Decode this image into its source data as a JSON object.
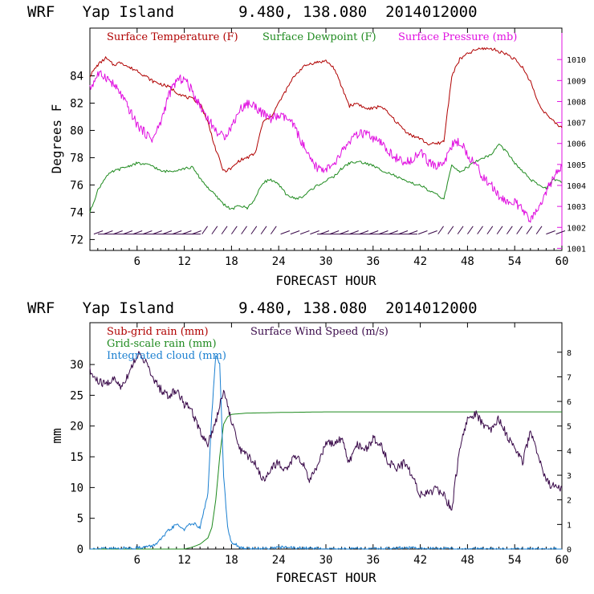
{
  "colors": {
    "temperature": "#b00000",
    "dewpoint": "#1e8a1e",
    "pressure": "#e010e0",
    "wind": "#3a0a4a",
    "subgrid_rain": "#b00000",
    "gridscale_rain": "#1e8a1e",
    "cloud": "#1a7fd0"
  },
  "chart_data": [
    {
      "type": "line",
      "title": "WRF   Yap Island       9.480, 138.080  2014012000",
      "xlabel": "FORECAST HOUR",
      "ylabel": "Degrees F",
      "xlim": [
        0,
        60
      ],
      "ylim": [
        71.2,
        87.5
      ],
      "y2lim": [
        1000.9,
        1011.5
      ],
      "xticks": [
        "6",
        "12",
        "18",
        "24",
        "30",
        "36",
        "42",
        "48",
        "54",
        "60"
      ],
      "yticks": [
        "72",
        "74",
        "76",
        "78",
        "80",
        "82",
        "84"
      ],
      "y2ticks": [
        "1001",
        "1002",
        "1003",
        "1004",
        "1005",
        "1006",
        "1007",
        "1008",
        "1009",
        "1010"
      ],
      "legend": [
        "Surface Temperature (F)",
        "Surface Dewpoint (F)",
        "Surface Pressure (mb)"
      ],
      "series": [
        {
          "name": "Surface Temperature (F)",
          "axis": "left",
          "x": [
            0,
            1,
            2,
            3,
            4,
            5,
            6,
            7,
            8,
            9,
            10,
            11,
            12,
            13,
            14,
            15,
            16,
            17,
            18,
            19,
            20,
            21,
            22,
            23,
            24,
            25,
            26,
            27,
            28,
            29,
            30,
            31,
            32,
            33,
            34,
            35,
            36,
            37,
            38,
            39,
            40,
            41,
            42,
            43,
            44,
            45,
            46,
            47,
            48,
            49,
            50,
            51,
            52,
            53,
            54,
            55,
            56,
            57,
            58,
            59,
            60
          ],
          "values": [
            84.0,
            84.8,
            85.3,
            84.8,
            85.0,
            84.6,
            84.4,
            84.0,
            83.6,
            83.4,
            83.2,
            82.8,
            82.5,
            82.3,
            82.0,
            80.6,
            78.6,
            77.0,
            77.2,
            77.8,
            78.0,
            78.3,
            80.6,
            81.0,
            82.0,
            83.0,
            84.0,
            84.6,
            84.9,
            85.0,
            85.1,
            84.6,
            83.2,
            81.8,
            82.0,
            81.6,
            81.6,
            81.8,
            81.2,
            80.6,
            80.0,
            79.6,
            79.4,
            79.0,
            79.0,
            79.2,
            84.0,
            85.2,
            85.6,
            85.9,
            86.0,
            86.0,
            85.8,
            85.6,
            85.2,
            84.6,
            83.6,
            82.0,
            81.2,
            80.6,
            80.2
          ]
        },
        {
          "name": "Surface Dewpoint (F)",
          "axis": "left",
          "x": [
            0,
            1,
            2,
            3,
            4,
            5,
            6,
            7,
            8,
            9,
            10,
            11,
            12,
            13,
            14,
            15,
            16,
            17,
            18,
            19,
            20,
            21,
            22,
            23,
            24,
            25,
            26,
            27,
            28,
            29,
            30,
            31,
            32,
            33,
            34,
            35,
            36,
            37,
            38,
            39,
            40,
            41,
            42,
            43,
            44,
            45,
            46,
            47,
            48,
            49,
            50,
            51,
            52,
            53,
            54,
            55,
            56,
            57,
            58,
            59,
            60
          ],
          "values": [
            74.0,
            75.6,
            76.6,
            77.0,
            77.2,
            77.4,
            77.6,
            77.5,
            77.4,
            77.0,
            77.0,
            77.1,
            77.2,
            77.3,
            76.5,
            75.8,
            75.2,
            74.6,
            74.2,
            74.5,
            74.3,
            75.0,
            76.2,
            76.4,
            76.0,
            75.3,
            75.0,
            75.1,
            75.6,
            76.0,
            76.3,
            76.6,
            77.2,
            77.6,
            77.7,
            77.6,
            77.4,
            77.1,
            76.9,
            76.6,
            76.3,
            76.1,
            76.0,
            75.6,
            75.3,
            75.0,
            77.4,
            77.0,
            77.3,
            77.7,
            78.0,
            78.2,
            79.0,
            78.4,
            77.6,
            77.0,
            76.4,
            76.0,
            75.8,
            76.4,
            76.2
          ]
        },
        {
          "name": "Surface Pressure (mb)",
          "axis": "right",
          "x": [
            0,
            1,
            2,
            3,
            4,
            5,
            6,
            7,
            8,
            9,
            10,
            11,
            12,
            13,
            14,
            15,
            16,
            17,
            18,
            19,
            20,
            21,
            22,
            23,
            24,
            25,
            26,
            27,
            28,
            29,
            30,
            31,
            32,
            33,
            34,
            35,
            36,
            37,
            38,
            39,
            40,
            41,
            42,
            43,
            44,
            45,
            46,
            47,
            48,
            49,
            50,
            51,
            52,
            53,
            54,
            55,
            56,
            57,
            58,
            59,
            60
          ],
          "values": [
            1008.6,
            1009.3,
            1009.2,
            1008.8,
            1008.3,
            1007.6,
            1006.9,
            1006.5,
            1006.2,
            1007.0,
            1008.3,
            1009.0,
            1009.1,
            1008.5,
            1007.8,
            1007.2,
            1006.6,
            1006.3,
            1006.8,
            1007.6,
            1007.9,
            1007.8,
            1007.4,
            1007.2,
            1007.3,
            1007.2,
            1006.8,
            1006.0,
            1005.2,
            1004.8,
            1004.8,
            1004.9,
            1005.6,
            1006.1,
            1006.4,
            1006.5,
            1006.2,
            1006.0,
            1005.6,
            1005.3,
            1005.0,
            1005.3,
            1005.6,
            1005.1,
            1004.9,
            1005.1,
            1005.9,
            1006.1,
            1005.5,
            1005.0,
            1004.4,
            1004.0,
            1003.5,
            1003.2,
            1003.2,
            1002.8,
            1002.3,
            1002.9,
            1003.7,
            1004.4,
            1004.9
          ]
        }
      ]
    },
    {
      "type": "line",
      "title": "WRF   Yap Island       9.480, 138.080  2014012000",
      "xlabel": "FORECAST HOUR",
      "ylabel": "mm",
      "xlim": [
        0,
        60
      ],
      "ylim": [
        0,
        36.8
      ],
      "y2lim": [
        0,
        9.2
      ],
      "xticks": [
        "6",
        "12",
        "18",
        "24",
        "30",
        "36",
        "42",
        "48",
        "54",
        "60"
      ],
      "yticks": [
        "0",
        "5",
        "10",
        "15",
        "20",
        "25",
        "30"
      ],
      "y2ticks": [
        "0",
        "1",
        "2",
        "3",
        "4",
        "5",
        "6",
        "7",
        "8"
      ],
      "legend": [
        "Sub-grid rain (mm)",
        "Grid-scale rain (mm)",
        "Integrated cloud (mm)",
        "Surface Wind Speed (m/s)"
      ],
      "series": [
        {
          "name": "Grid-scale rain (mm)",
          "axis": "left",
          "x": [
            0,
            6,
            12,
            13,
            14,
            15,
            15.5,
            16,
            16.5,
            17,
            17.5,
            18,
            19,
            20,
            24,
            30,
            36,
            42,
            48,
            54,
            60
          ],
          "values": [
            0,
            0,
            0,
            0.3,
            0.8,
            1.8,
            3.5,
            8.0,
            15.0,
            20.3,
            21.5,
            21.9,
            22.0,
            22.1,
            22.2,
            22.3,
            22.3,
            22.3,
            22.3,
            22.3,
            22.3
          ]
        },
        {
          "name": "Integrated cloud (mm)",
          "axis": "left",
          "x": [
            0,
            4,
            6,
            8,
            9,
            10,
            11,
            12,
            13,
            14,
            15,
            15.5,
            16,
            16.5,
            17,
            17.5,
            18,
            18.5,
            19,
            20,
            22,
            24,
            30,
            36,
            40,
            42,
            48,
            54,
            60
          ],
          "values": [
            0,
            0.1,
            0.2,
            0.5,
            1.5,
            3.0,
            4.0,
            3.2,
            4.3,
            3.5,
            9.0,
            22.0,
            31.5,
            30.0,
            12.0,
            3.5,
            1.0,
            0.8,
            0.2,
            0.1,
            0.1,
            0.3,
            0,
            0,
            0.2,
            0.1,
            0,
            0,
            0
          ]
        },
        {
          "name": "Surface Wind Speed (m/s)",
          "axis": "right",
          "x": [
            0,
            1,
            2,
            3,
            4,
            5,
            6,
            7,
            8,
            9,
            10,
            11,
            12,
            13,
            14,
            15,
            16,
            17,
            18,
            19,
            20,
            21,
            22,
            23,
            24,
            25,
            26,
            27,
            28,
            29,
            30,
            31,
            32,
            33,
            34,
            35,
            36,
            37,
            38,
            39,
            40,
            41,
            42,
            43,
            44,
            45,
            46,
            47,
            48,
            49,
            50,
            51,
            52,
            53,
            54,
            55,
            56,
            57,
            58,
            59,
            60
          ],
          "values": [
            7.2,
            6.8,
            6.7,
            6.9,
            6.6,
            7.2,
            7.9,
            7.7,
            6.9,
            6.5,
            6.2,
            6.5,
            5.9,
            5.6,
            4.8,
            4.3,
            5.2,
            6.5,
            5.2,
            4.1,
            3.8,
            3.5,
            2.8,
            3.3,
            3.5,
            3.2,
            3.8,
            3.5,
            2.8,
            3.3,
            4.4,
            4.2,
            4.5,
            3.5,
            4.3,
            4.0,
            4.5,
            4.2,
            3.5,
            3.3,
            3.5,
            3.0,
            2.2,
            2.3,
            2.4,
            2.2,
            1.6,
            4.1,
            5.3,
            5.5,
            5.1,
            4.9,
            5.3,
            4.6,
            4.2,
            3.5,
            4.8,
            3.8,
            2.8,
            2.5,
            2.5
          ]
        }
      ]
    }
  ]
}
